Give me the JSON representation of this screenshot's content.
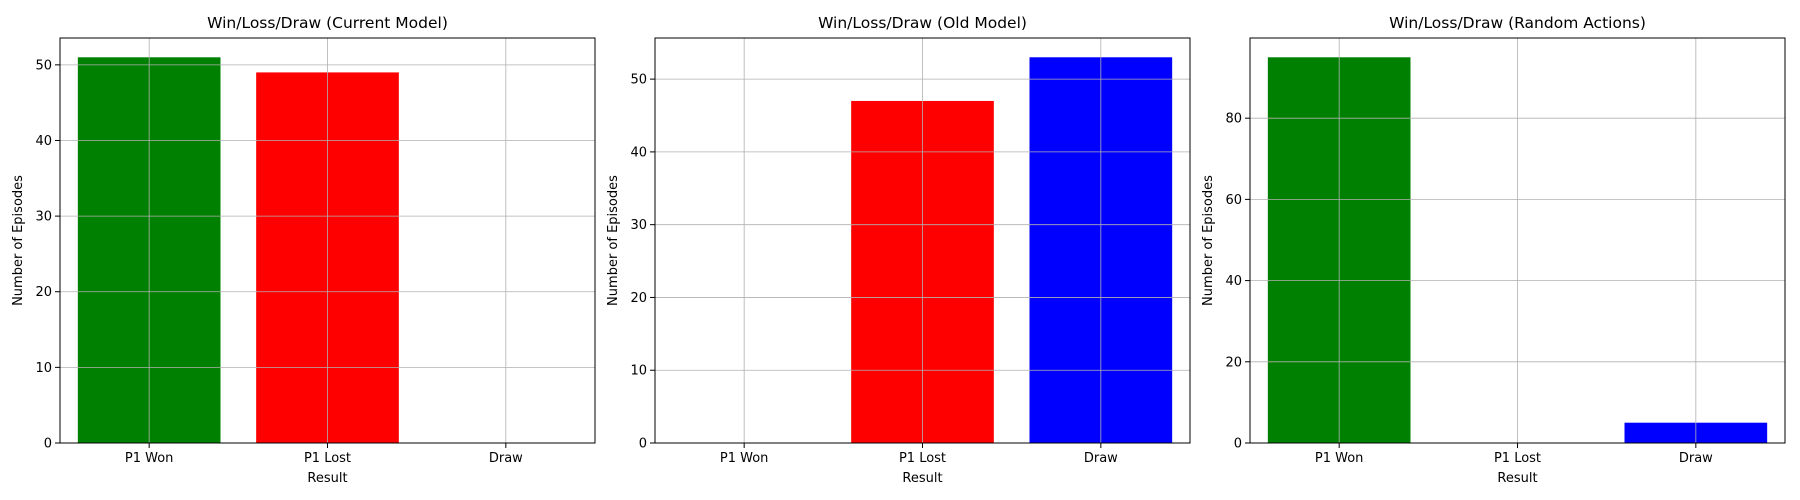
{
  "chart_data": [
    {
      "type": "bar",
      "title": "Win/Loss/Draw (Current Model)",
      "xlabel": "Result",
      "ylabel": "Number of Episodes",
      "categories": [
        "P1 Won",
        "P1 Lost",
        "Draw"
      ],
      "values": [
        51,
        49,
        0
      ],
      "colors": [
        "#008000",
        "#ff0000",
        "#0000ff"
      ],
      "ylim": [
        0,
        53.55
      ],
      "yticks": [
        0,
        10,
        20,
        30,
        40,
        50
      ],
      "grid": true
    },
    {
      "type": "bar",
      "title": "Win/Loss/Draw (Old Model)",
      "xlabel": "Result",
      "ylabel": "Number of Episodes",
      "categories": [
        "P1 Won",
        "P1 Lost",
        "Draw"
      ],
      "values": [
        0,
        47,
        53
      ],
      "colors": [
        "#008000",
        "#ff0000",
        "#0000ff"
      ],
      "ylim": [
        0,
        55.65
      ],
      "yticks": [
        0,
        10,
        20,
        30,
        40,
        50
      ],
      "grid": true
    },
    {
      "type": "bar",
      "title": "Win/Loss/Draw (Random Actions)",
      "xlabel": "Result",
      "ylabel": "Number of Episodes",
      "categories": [
        "P1 Won",
        "P1 Lost",
        "Draw"
      ],
      "values": [
        95,
        0,
        5
      ],
      "colors": [
        "#008000",
        "#ff0000",
        "#0000ff"
      ],
      "ylim": [
        0,
        99.75
      ],
      "yticks": [
        0,
        20,
        40,
        60,
        80
      ],
      "grid": true
    }
  ]
}
